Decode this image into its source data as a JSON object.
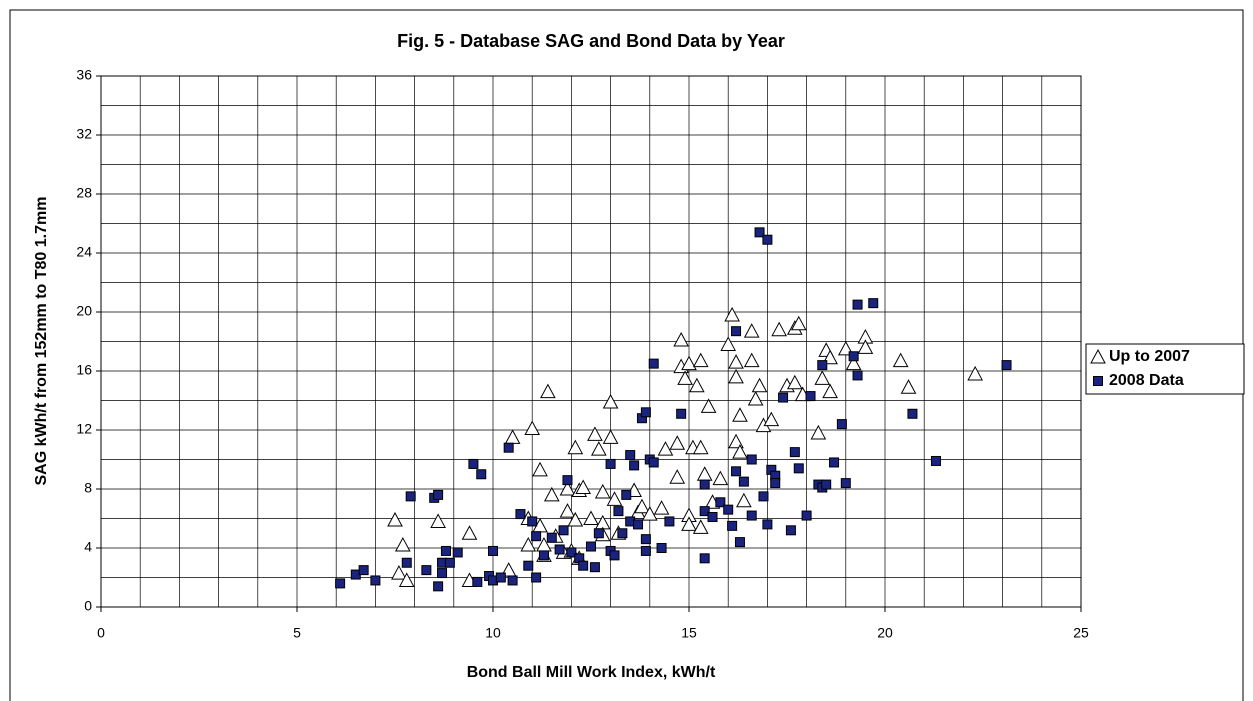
{
  "chart_data": {
    "type": "scatter",
    "title": "Fig. 5 - Database SAG and Bond Data by Year",
    "x_label": "Bond Ball Mill Work Index, kWh/t",
    "y_label": "SAG kWh/t from 152mm to T80 1.7mm",
    "xlim": [
      0,
      25
    ],
    "xticks": [
      0,
      5,
      10,
      15,
      20,
      25
    ],
    "ylim": [
      0,
      36
    ],
    "yticks": [
      0,
      4,
      8,
      12,
      16,
      20,
      24,
      28,
      32,
      36
    ],
    "grid": true,
    "x_grid_step": 1,
    "y_grid_step": 2,
    "legend": "right",
    "series": [
      {
        "name": "Up to 2007",
        "marker": "triangle",
        "color": "#ffffff",
        "x": [
          7.5,
          7.7,
          7.6,
          7.8,
          8.6,
          9.4,
          9.4,
          10.4,
          10.5,
          11.0,
          10.9,
          10.9,
          11.2,
          11.2,
          11.4,
          11.5,
          11.3,
          11.6,
          11.8,
          11.9,
          11.9,
          12.1,
          12.1,
          12.2,
          12.3,
          12.5,
          12.6,
          12.7,
          12.8,
          12.8,
          12.8,
          13.0,
          13.0,
          13.1,
          13.2,
          13.6,
          13.7,
          13.8,
          14.0,
          14.3,
          14.4,
          14.7,
          14.7,
          14.8,
          14.8,
          14.9,
          15.0,
          15.1,
          15.0,
          15.0,
          15.2,
          15.3,
          15.3,
          15.3,
          15.4,
          15.5,
          15.6,
          15.8,
          16.0,
          16.1,
          16.2,
          16.2,
          16.3,
          16.2,
          16.3,
          16.4,
          16.6,
          16.6,
          16.7,
          16.8,
          16.9,
          17.1,
          17.3,
          17.5,
          17.7,
          17.7,
          17.8,
          17.9,
          18.3,
          18.4,
          18.5,
          18.6,
          18.6,
          19.0,
          19.2,
          19.5,
          19.5,
          20.4,
          20.6,
          22.3,
          12.0,
          11.3,
          12.2
        ],
        "values": [
          5.9,
          4.2,
          2.3,
          1.8,
          5.8,
          5.0,
          1.8,
          2.5,
          11.5,
          12.1,
          4.2,
          6.0,
          9.3,
          5.5,
          14.6,
          7.6,
          3.5,
          4.8,
          3.7,
          6.5,
          8.0,
          10.8,
          5.9,
          7.9,
          8.1,
          6.0,
          11.7,
          10.7,
          5.7,
          7.8,
          4.9,
          11.5,
          13.9,
          7.3,
          5.0,
          7.9,
          6.4,
          6.8,
          6.3,
          6.7,
          10.7,
          11.1,
          8.8,
          18.1,
          16.3,
          15.5,
          16.5,
          10.8,
          6.2,
          5.6,
          15.0,
          16.7,
          10.8,
          5.4,
          9.0,
          13.6,
          7.1,
          8.7,
          17.8,
          19.8,
          15.6,
          16.6,
          13.0,
          11.2,
          10.5,
          7.2,
          18.7,
          16.7,
          14.1,
          15.0,
          12.3,
          12.7,
          18.8,
          15.0,
          15.2,
          18.9,
          19.2,
          14.4,
          11.8,
          15.5,
          17.4,
          14.6,
          16.9,
          17.5,
          16.5,
          18.3,
          17.6,
          16.7,
          14.9,
          15.8,
          3.8,
          4.2,
          3.3
        ]
      },
      {
        "name": "2008 Data",
        "marker": "square",
        "color": "#1a237e",
        "x": [
          6.1,
          6.5,
          6.7,
          7.0,
          7.8,
          7.9,
          8.3,
          8.5,
          8.6,
          8.6,
          8.7,
          8.7,
          8.8,
          8.9,
          9.1,
          9.5,
          9.7,
          9.6,
          9.9,
          10.0,
          10.0,
          10.2,
          10.5,
          10.4,
          10.7,
          10.9,
          11.0,
          11.1,
          11.1,
          11.3,
          11.5,
          11.7,
          11.8,
          11.9,
          12.0,
          12.2,
          12.3,
          12.5,
          12.6,
          12.7,
          13.0,
          13.0,
          13.1,
          13.2,
          13.3,
          13.4,
          13.5,
          13.5,
          13.6,
          13.7,
          13.8,
          13.9,
          13.9,
          13.9,
          14.0,
          14.1,
          14.1,
          14.3,
          14.5,
          14.8,
          15.4,
          15.4,
          15.4,
          15.6,
          15.8,
          16.0,
          16.1,
          16.2,
          16.2,
          16.3,
          16.4,
          16.6,
          16.6,
          16.8,
          16.9,
          17.0,
          17.0,
          17.1,
          17.2,
          17.2,
          17.4,
          17.6,
          17.7,
          17.8,
          18.0,
          18.1,
          18.3,
          18.4,
          18.4,
          18.5,
          18.7,
          18.9,
          19.0,
          19.2,
          19.3,
          19.3,
          19.7,
          20.7,
          21.3,
          23.1
        ],
        "values": [
          1.6,
          2.2,
          2.5,
          1.8,
          3.0,
          7.5,
          2.5,
          7.4,
          7.6,
          1.4,
          3.0,
          2.3,
          3.8,
          3.0,
          3.7,
          9.7,
          9.0,
          1.7,
          2.1,
          1.8,
          3.8,
          2.0,
          1.8,
          10.8,
          6.3,
          2.8,
          5.8,
          2.0,
          4.8,
          3.5,
          4.7,
          3.9,
          5.2,
          8.6,
          3.7,
          3.3,
          2.8,
          4.1,
          2.7,
          5.0,
          9.7,
          3.8,
          3.5,
          6.5,
          5.0,
          7.6,
          10.3,
          5.8,
          9.6,
          5.6,
          12.8,
          13.2,
          4.6,
          3.8,
          10.0,
          9.8,
          16.5,
          4.0,
          5.8,
          13.1,
          8.3,
          6.5,
          3.3,
          6.1,
          7.1,
          6.6,
          5.5,
          9.2,
          18.7,
          4.4,
          8.5,
          6.2,
          10.0,
          25.4,
          7.5,
          24.9,
          5.6,
          9.3,
          8.9,
          8.4,
          14.2,
          5.2,
          10.5,
          9.4,
          6.2,
          14.3,
          8.3,
          16.4,
          8.1,
          8.3,
          9.8,
          12.4,
          8.4,
          17.0,
          15.7,
          20.5,
          20.6,
          13.1,
          9.9,
          16.4
        ]
      }
    ]
  }
}
